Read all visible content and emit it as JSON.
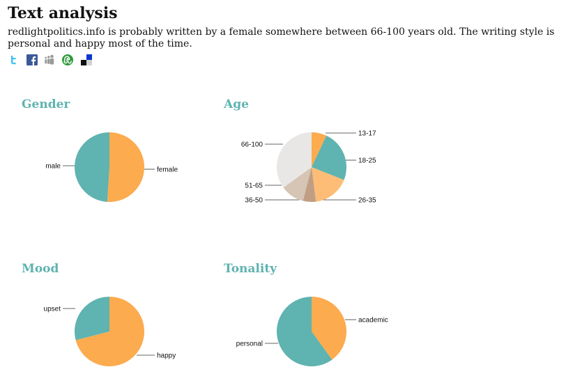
{
  "page": {
    "title": "Text analysis",
    "summary": "redlightpolitics.info is probably written by a female somewhere between 66-100 years old. The writing style is personal and happy most of the time."
  },
  "share": [
    {
      "name": "twitter-icon"
    },
    {
      "name": "facebook-icon"
    },
    {
      "name": "myspace-icon"
    },
    {
      "name": "stumbleupon-icon"
    },
    {
      "name": "delicious-icon"
    }
  ],
  "colors": {
    "orange": "#fcab4f",
    "teal": "#5fb3b0",
    "light_orange": "#fdbd76",
    "tan": "#c09e84",
    "beige": "#d6c4b4",
    "light_gray": "#e8e7e6",
    "title_teal": "#5fb3b0"
  },
  "chart_data": [
    {
      "type": "pie",
      "title": "Gender",
      "labels": [
        "female",
        "male"
      ],
      "values": [
        51,
        49
      ],
      "colors": [
        "#fcab4f",
        "#5fb3b0"
      ],
      "start_angle_deg": 0
    },
    {
      "type": "pie",
      "title": "Age",
      "labels": [
        "13-17",
        "18-25",
        "26-35",
        "36-50",
        "51-65",
        "66-100"
      ],
      "values": [
        7,
        24,
        17,
        6,
        11,
        35
      ],
      "colors": [
        "#fcab4f",
        "#5fb3b0",
        "#fdbd76",
        "#c09e84",
        "#d6c4b4",
        "#e8e7e6"
      ],
      "start_angle_deg": 0
    },
    {
      "type": "pie",
      "title": "Mood",
      "labels": [
        "happy",
        "upset"
      ],
      "values": [
        71,
        29
      ],
      "colors": [
        "#fcab4f",
        "#5fb3b0"
      ],
      "start_angle_deg": 0
    },
    {
      "type": "pie",
      "title": "Tonality",
      "labels": [
        "academic",
        "personal"
      ],
      "values": [
        40,
        60
      ],
      "colors": [
        "#fcab4f",
        "#5fb3b0"
      ],
      "start_angle_deg": 0
    }
  ]
}
